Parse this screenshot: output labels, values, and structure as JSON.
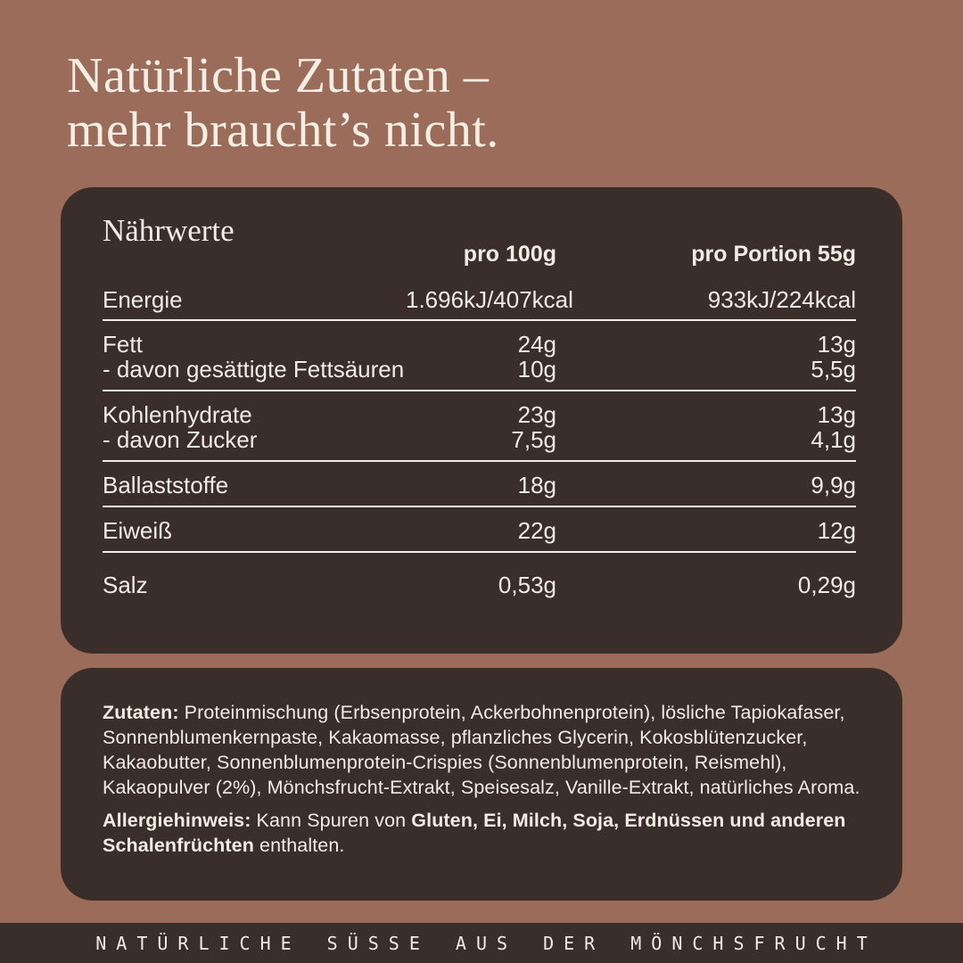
{
  "header": {
    "title_lines": [
      "Natürliche Zutaten –",
      "mehr braucht’s nicht."
    ]
  },
  "nutrition_card": {
    "heading": "Nährwerte",
    "columns": [
      "pro 100g",
      "pro Portion 55g"
    ],
    "sections": [
      {
        "rows": [
          {
            "label": "Energie",
            "per_100g": "1.696kJ/407kcal",
            "per_portion": "933kJ/224kcal"
          }
        ]
      },
      {
        "rows": [
          {
            "label": "Fett",
            "per_100g": "24g",
            "per_portion": "13g"
          },
          {
            "label": "- davon gesättigte Fettsäuren",
            "per_100g": "10g",
            "per_portion": "5,5g"
          }
        ]
      },
      {
        "rows": [
          {
            "label": "Kohlenhydrate",
            "per_100g": "23g",
            "per_portion": "13g"
          },
          {
            "label": "- davon Zucker",
            "per_100g": "7,5g",
            "per_portion": "4,1g"
          }
        ]
      },
      {
        "rows": [
          {
            "label": "Ballaststoffe",
            "per_100g": "18g",
            "per_portion": "9,9g"
          }
        ]
      },
      {
        "rows": [
          {
            "label": "Eiweiß",
            "per_100g": "22g",
            "per_portion": "12g"
          }
        ]
      },
      {
        "rows": [
          {
            "label": "Salz",
            "per_100g": "0,53g",
            "per_portion": "0,29g"
          }
        ]
      }
    ]
  },
  "ingredients_card": {
    "ingredients_label": "Zutaten:",
    "ingredients_text": " Proteinmischung (Erbsenprotein, Ackerbohnenprotein), lösliche Tapiokafaser, Sonnenblumenkernpaste, Kakaomasse, pflanzliches Glycerin, Kokosblütenzucker, Kakaobutter, Sonnenblumenprotein-Crispies (Sonnenblumenprotein, Reismehl), Kakaopulver (2%), Mönchsfrucht-Extrakt, Speisesalz, Vanille-Extrakt, natürliches Aroma.",
    "allergy_label": "Allergiehinweis:",
    "allergy_pre": " Kann Spuren von ",
    "allergy_bold": "Gluten, Ei, Milch, Soja, Erdnüssen und anderen Schalenfrüchten",
    "allergy_post": " enthalten."
  },
  "footer": {
    "tagline": "NATÜRLICHE SÜSSE AUS DER MÖNCHSFRUCHT"
  },
  "colors": {
    "background": "#9A6C59",
    "card": "#3A2E2B",
    "text": "#F2ECE2"
  }
}
